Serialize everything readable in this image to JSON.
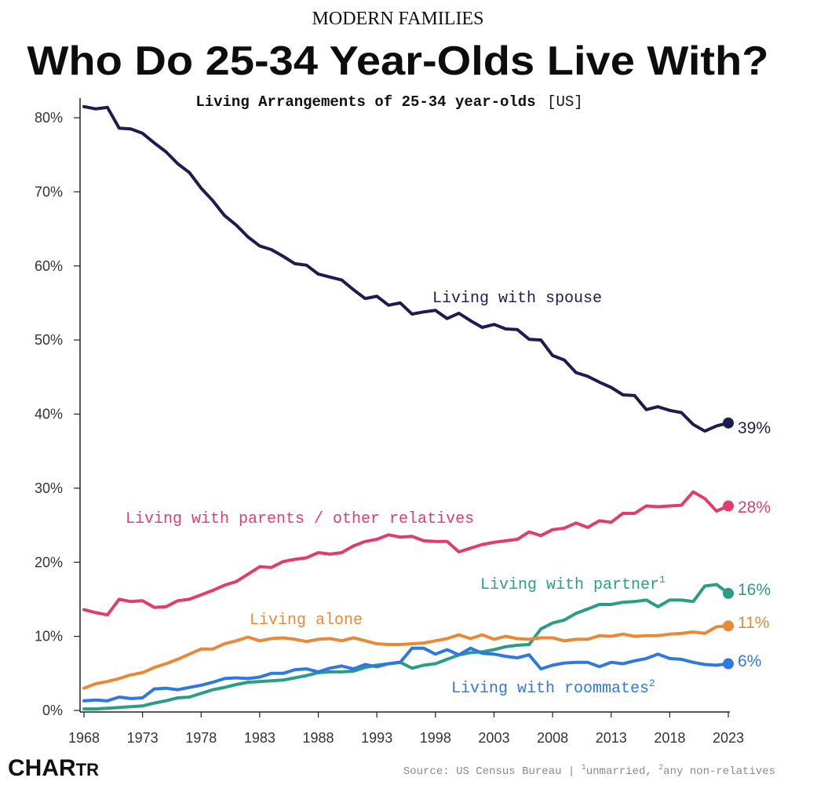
{
  "header": {
    "kicker": "MODERN FAMILIES",
    "headline": "Who Do 25-34 Year-Olds Live With?"
  },
  "footer": {
    "logo_big": "CHAR",
    "logo_small": "TR",
    "source_prefix": "Source: US Census Bureau | ",
    "note_1_sup": "1",
    "note_1": "unmarried, ",
    "note_2_sup": "2",
    "note_2": "any non-relatives"
  },
  "colors": {
    "spouse": "#1e1b4f",
    "parents": "#e03e6a",
    "partner": "#2a9d86",
    "alone": "#e8893a",
    "roommates": "#2f78df",
    "axis": "#222222",
    "text": "#333333"
  },
  "chart_data": {
    "type": "line",
    "title": "Living Arrangements of 25-34 year-olds",
    "title_tag": "[US]",
    "xlabel": "",
    "ylabel": "",
    "ylim": [
      0,
      82
    ],
    "xlim": [
      1968,
      2023
    ],
    "grid": false,
    "y_ticks": [
      0,
      10,
      20,
      30,
      40,
      50,
      60,
      70,
      80
    ],
    "y_tick_labels": [
      "0%",
      "10%",
      "20%",
      "30%",
      "40%",
      "50%",
      "60%",
      "70%",
      "80%"
    ],
    "x_ticks": [
      1968,
      1973,
      1978,
      1983,
      1988,
      1993,
      1998,
      2003,
      2008,
      2013,
      2018,
      2023
    ],
    "x": [
      1968,
      1969,
      1970,
      1971,
      1972,
      1973,
      1974,
      1975,
      1976,
      1977,
      1978,
      1979,
      1980,
      1981,
      1982,
      1983,
      1984,
      1985,
      1986,
      1987,
      1988,
      1989,
      1990,
      1991,
      1992,
      1993,
      1994,
      1995,
      1996,
      1997,
      1998,
      1999,
      2000,
      2001,
      2002,
      2003,
      2004,
      2005,
      2006,
      2007,
      2008,
      2009,
      2010,
      2011,
      2012,
      2013,
      2014,
      2015,
      2016,
      2017,
      2018,
      2019,
      2020,
      2021,
      2022,
      2023
    ],
    "series": [
      {
        "key": "spouse",
        "name": "Living with spouse",
        "end_label": "39%",
        "values": [
          81.5,
          81.2,
          81.4,
          78.6,
          78.5,
          77.9,
          76.6,
          75.4,
          73.8,
          72.6,
          70.5,
          68.8,
          66.8,
          65.5,
          63.9,
          62.7,
          62.2,
          61.3,
          60.3,
          60.1,
          58.9,
          58.5,
          58.1,
          56.8,
          55.6,
          55.9,
          54.7,
          55.0,
          53.5,
          53.8,
          54.0,
          52.9,
          53.6,
          52.6,
          51.7,
          52.1,
          51.5,
          51.4,
          50.1,
          50.0,
          47.9,
          47.3,
          45.6,
          45.1,
          44.3,
          43.6,
          42.6,
          42.5,
          40.6,
          41.0,
          40.5,
          40.2,
          38.6,
          37.7,
          38.4,
          38.8
        ]
      },
      {
        "key": "parents",
        "name": "Living with parents / other relatives",
        "end_label": "28%",
        "values": [
          13.6,
          13.2,
          12.9,
          15.0,
          14.7,
          14.8,
          13.9,
          14.0,
          14.8,
          15.0,
          15.6,
          16.2,
          16.9,
          17.4,
          18.4,
          19.4,
          19.3,
          20.1,
          20.4,
          20.6,
          21.3,
          21.1,
          21.3,
          22.2,
          22.8,
          23.1,
          23.7,
          23.4,
          23.5,
          22.9,
          22.8,
          22.8,
          21.4,
          21.9,
          22.4,
          22.7,
          22.9,
          23.1,
          24.1,
          23.6,
          24.4,
          24.6,
          25.3,
          24.7,
          25.6,
          25.4,
          26.6,
          26.6,
          27.6,
          27.5,
          27.6,
          27.7,
          29.5,
          28.6,
          26.9,
          27.6
        ]
      },
      {
        "key": "partner",
        "name": "Living with partner",
        "name_sup": "1",
        "end_label": "16%",
        "values": [
          0.2,
          0.2,
          0.3,
          0.4,
          0.5,
          0.6,
          1.0,
          1.3,
          1.7,
          1.8,
          2.3,
          2.8,
          3.1,
          3.5,
          3.8,
          3.9,
          4.0,
          4.1,
          4.4,
          4.7,
          5.1,
          5.2,
          5.2,
          5.3,
          5.8,
          6.1,
          6.3,
          6.5,
          5.7,
          6.1,
          6.3,
          6.9,
          7.5,
          7.8,
          7.9,
          8.2,
          8.6,
          8.8,
          8.9,
          11.0,
          11.8,
          12.2,
          13.1,
          13.7,
          14.3,
          14.3,
          14.6,
          14.7,
          14.9,
          14.0,
          14.9,
          14.9,
          14.7,
          16.8,
          17.0,
          15.8
        ]
      },
      {
        "key": "alone",
        "name": "Living alone",
        "end_label": "11%",
        "values": [
          3.0,
          3.6,
          3.9,
          4.3,
          4.8,
          5.1,
          5.8,
          6.3,
          6.9,
          7.6,
          8.3,
          8.3,
          9.0,
          9.4,
          9.9,
          9.4,
          9.7,
          9.8,
          9.6,
          9.3,
          9.6,
          9.7,
          9.4,
          9.8,
          9.4,
          9.0,
          8.9,
          8.9,
          9.0,
          9.1,
          9.4,
          9.7,
          10.2,
          9.7,
          10.2,
          9.6,
          10.0,
          9.7,
          9.6,
          9.8,
          9.8,
          9.4,
          9.6,
          9.6,
          10.1,
          10.0,
          10.3,
          10.0,
          10.1,
          10.1,
          10.3,
          10.4,
          10.6,
          10.4,
          11.3,
          11.4
        ]
      },
      {
        "key": "roommates",
        "name": "Living with roommates",
        "name_sup": "2",
        "end_label": "6%",
        "values": [
          1.3,
          1.4,
          1.3,
          1.8,
          1.6,
          1.7,
          2.9,
          3.0,
          2.8,
          3.1,
          3.4,
          3.8,
          4.3,
          4.4,
          4.3,
          4.5,
          5.0,
          5.0,
          5.5,
          5.6,
          5.2,
          5.7,
          6.0,
          5.6,
          6.2,
          5.9,
          6.3,
          6.5,
          8.4,
          8.4,
          7.6,
          8.2,
          7.5,
          8.4,
          7.7,
          7.6,
          7.3,
          7.1,
          7.5,
          5.6,
          6.1,
          6.4,
          6.5,
          6.5,
          5.9,
          6.5,
          6.3,
          6.7,
          7.0,
          7.6,
          7.0,
          6.9,
          6.5,
          6.2,
          6.1,
          6.3
        ]
      }
    ]
  }
}
